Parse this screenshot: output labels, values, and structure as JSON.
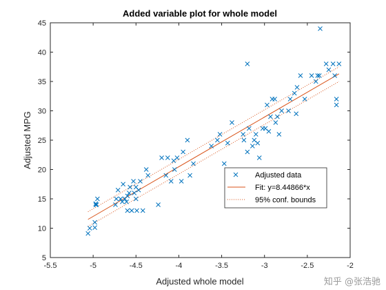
{
  "chart_data": {
    "type": "scatter",
    "title": "Added variable plot for whole model",
    "xlabel": "Adjusted whole model",
    "ylabel": "Adjusted MPG",
    "xlim": [
      -5.5,
      -2
    ],
    "ylim": [
      5,
      45
    ],
    "xticks": [
      -5.5,
      -5,
      -4.5,
      -4,
      -3.5,
      -3,
      -2.5,
      -2
    ],
    "xtick_labels": [
      "-5.5",
      "-5",
      "-4.5",
      "-4",
      "-3.5",
      "-3",
      "-2.5",
      "-2"
    ],
    "yticks": [
      5,
      10,
      15,
      20,
      25,
      30,
      35,
      40,
      45
    ],
    "ytick_labels": [
      "5",
      "10",
      "15",
      "20",
      "25",
      "30",
      "35",
      "40",
      "45"
    ],
    "grid": false,
    "legend_position": "center-right",
    "series": [
      {
        "name": "Adjusted data",
        "marker": "x",
        "color": "#0072BD",
        "points": [
          [
            -5.06,
            9.1
          ],
          [
            -5.04,
            10.0
          ],
          [
            -4.98,
            10.1
          ],
          [
            -4.98,
            11.0
          ],
          [
            -4.97,
            14.0
          ],
          [
            -4.96,
            14.0
          ],
          [
            -4.97,
            14.2
          ],
          [
            -4.95,
            15.0
          ],
          [
            -4.74,
            14.0
          ],
          [
            -4.73,
            15.0
          ],
          [
            -4.71,
            16.5
          ],
          [
            -4.68,
            15.0
          ],
          [
            -4.66,
            14.5
          ],
          [
            -4.65,
            17.5
          ],
          [
            -4.63,
            15.0
          ],
          [
            -4.61,
            14.5
          ],
          [
            -4.6,
            13.0
          ],
          [
            -4.6,
            15.5
          ],
          [
            -4.58,
            16.0
          ],
          [
            -4.57,
            17.0
          ],
          [
            -4.55,
            13.0
          ],
          [
            -4.53,
            18.0
          ],
          [
            -4.52,
            16.0
          ],
          [
            -4.5,
            15.0
          ],
          [
            -4.5,
            17.0
          ],
          [
            -4.49,
            13.0
          ],
          [
            -4.47,
            16.5
          ],
          [
            -4.45,
            18.0
          ],
          [
            -4.42,
            13.0
          ],
          [
            -4.38,
            20.0
          ],
          [
            -4.36,
            19.0
          ],
          [
            -4.24,
            14.0
          ],
          [
            -4.2,
            22.0
          ],
          [
            -4.15,
            19.0
          ],
          [
            -4.13,
            22.0
          ],
          [
            -4.09,
            18.0
          ],
          [
            -4.06,
            21.5
          ],
          [
            -4.05,
            20.0
          ],
          [
            -4.02,
            22.0
          ],
          [
            -3.97,
            18.0
          ],
          [
            -3.95,
            23.0
          ],
          [
            -3.9,
            25.0
          ],
          [
            -3.87,
            19.0
          ],
          [
            -3.83,
            21.0
          ],
          [
            -3.62,
            24.0
          ],
          [
            -3.55,
            25.0
          ],
          [
            -3.52,
            26.0
          ],
          [
            -3.47,
            21.0
          ],
          [
            -3.43,
            24.5
          ],
          [
            -3.38,
            28.0
          ],
          [
            -3.25,
            26.0
          ],
          [
            -3.24,
            25.0
          ],
          [
            -3.2,
            23.0
          ],
          [
            -3.2,
            38.0
          ],
          [
            -3.18,
            27.0
          ],
          [
            -3.14,
            24.0
          ],
          [
            -3.12,
            25.0
          ],
          [
            -3.1,
            26.0
          ],
          [
            -3.08,
            24.5
          ],
          [
            -3.06,
            22.0
          ],
          [
            -3.02,
            27.0
          ],
          [
            -2.99,
            27.0
          ],
          [
            -2.97,
            31.0
          ],
          [
            -2.95,
            26.5
          ],
          [
            -2.93,
            29.0
          ],
          [
            -2.91,
            32.0
          ],
          [
            -2.88,
            32.0
          ],
          [
            -2.87,
            28.0
          ],
          [
            -2.85,
            29.0
          ],
          [
            -2.83,
            26.0
          ],
          [
            -2.8,
            30.0
          ],
          [
            -2.72,
            30.0
          ],
          [
            -2.7,
            32.0
          ],
          [
            -2.65,
            33.0
          ],
          [
            -2.63,
            29.5
          ],
          [
            -2.62,
            34.0
          ],
          [
            -2.58,
            36.0
          ],
          [
            -2.53,
            32.0
          ],
          [
            -2.45,
            36.0
          ],
          [
            -2.4,
            35.0
          ],
          [
            -2.38,
            36.0
          ],
          [
            -2.36,
            36.0
          ],
          [
            -2.35,
            44.0
          ],
          [
            -2.28,
            38.0
          ],
          [
            -2.25,
            37.0
          ],
          [
            -2.2,
            38.0
          ],
          [
            -2.18,
            36.0
          ],
          [
            -2.16,
            31.0
          ],
          [
            -2.16,
            32.0
          ],
          [
            -2.13,
            38.0
          ]
        ]
      },
      {
        "name": "Fit: y=8.44866*x",
        "style": "solid",
        "color": "#D95319",
        "points": [
          [
            -5.06,
            11.5
          ],
          [
            -2.13,
            36.3
          ]
        ]
      },
      {
        "name": "95% conf. bounds",
        "style": "dotted",
        "color": "#D95319",
        "points_upper": [
          [
            -5.06,
            12.8
          ],
          [
            -2.13,
            37.5
          ]
        ],
        "points_lower": [
          [
            -5.06,
            10.3
          ],
          [
            -2.13,
            35.0
          ]
        ]
      }
    ]
  },
  "watermark": "知乎 @张浩驰"
}
